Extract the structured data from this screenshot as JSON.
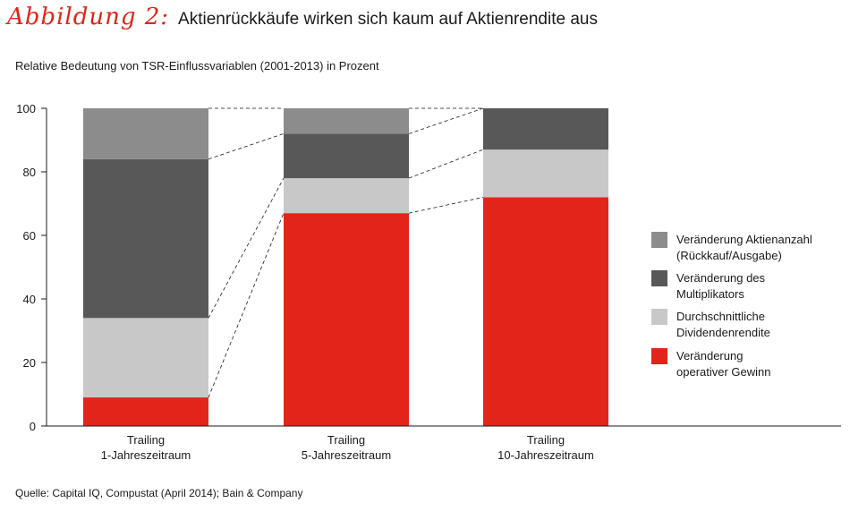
{
  "figure": {
    "label": "Abbildung 2:",
    "title": "Aktienrückkäufe wirken sich kaum auf Aktienrendite aus",
    "subtitle": "Relative Bedeutung von TSR-Einflussvariablen (2001-2013) in Prozent",
    "source": "Quelle: Capital IQ, Compustat (April 2014); Bain & Company"
  },
  "chart_data": {
    "type": "bar",
    "stacked": true,
    "categories": [
      [
        "Trailing",
        "1-Jahreszeitraum"
      ],
      [
        "Trailing",
        "5-Jahreszeitraum"
      ],
      [
        "Trailing",
        "10-Jahreszeitraum"
      ]
    ],
    "ylim": [
      0,
      100
    ],
    "yticks": [
      0,
      20,
      40,
      60,
      80,
      100
    ],
    "xlabel": "",
    "ylabel": "",
    "grid": false,
    "legend_position": "right",
    "connector_lines": "dashed",
    "series": [
      {
        "name": [
          "Veränderung",
          "operativer Gewinn"
        ],
        "color": "#e2241a",
        "values": [
          9,
          67,
          72
        ]
      },
      {
        "name": [
          "Durchschnittliche",
          "Dividendenrendite"
        ],
        "color": "#c8c8c8",
        "values": [
          25,
          11,
          15
        ]
      },
      {
        "name": [
          "Veränderung des",
          "Multiplikators"
        ],
        "color": "#585858",
        "values": [
          50,
          14,
          13
        ]
      },
      {
        "name": [
          "Veränderung Aktienanzahl",
          "(Rückkauf/Ausgabe)"
        ],
        "color": "#8c8c8c",
        "values": [
          16,
          8,
          0
        ]
      }
    ],
    "legend_order": [
      3,
      2,
      1,
      0
    ]
  }
}
